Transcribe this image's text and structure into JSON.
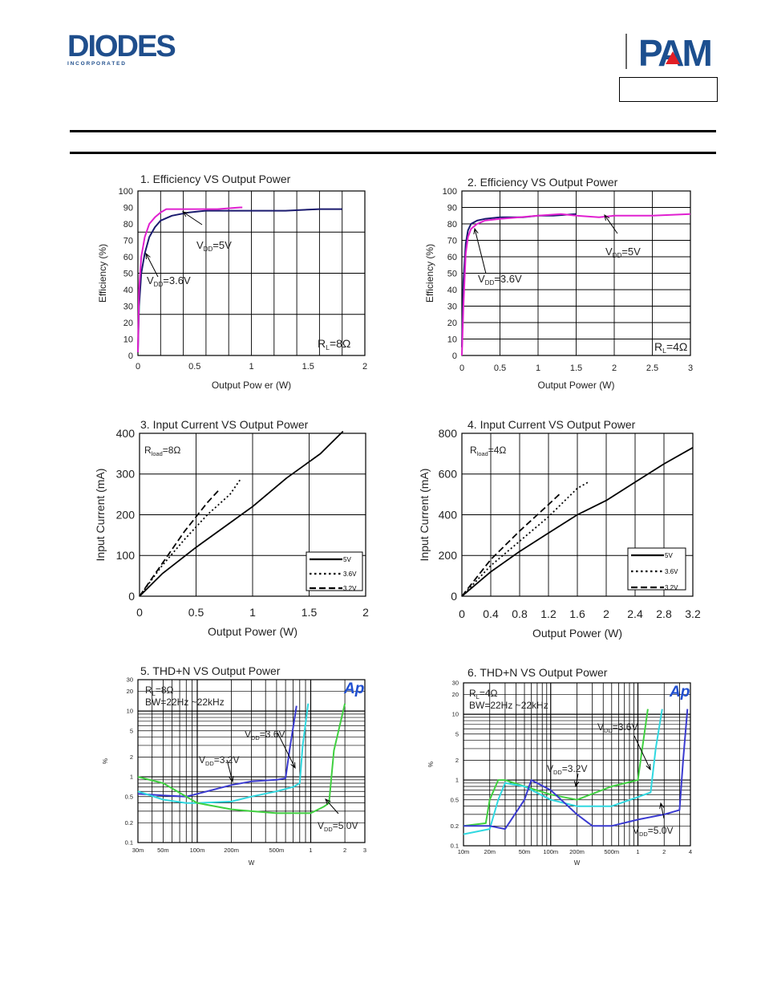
{
  "header": {
    "brand_name": "DIODES",
    "brand_sub": "I N C O R P O R A T E D",
    "pam_logo": "PAM",
    "colors": {
      "diodes_blue": "#1f4e8c",
      "pam_blue": "#1c4f8f",
      "pam_red": "#e21f26"
    }
  },
  "chart_data": [
    {
      "type": "line",
      "title": "1. Efficiency VS Output Power",
      "xlabel": "Output Pow er (W)",
      "ylabel": "Efficiency (%)",
      "xlim": [
        0,
        2
      ],
      "ylim": [
        0,
        100
      ],
      "xticks": [
        "0",
        "0.5",
        "1",
        "1.5",
        "2"
      ],
      "yticks": [
        "0",
        "10",
        "20",
        "30",
        "40",
        "50",
        "60",
        "70",
        "80",
        "90",
        "100"
      ],
      "annotations": [
        "V<sub>DD</sub>=5V",
        "V<sub>DD</sub>=3.6V",
        "R<sub>L</sub>=8Ω"
      ],
      "series": [
        {
          "name": "VDD=5V",
          "color": "#1a1a6e",
          "x": [
            0,
            0.01,
            0.03,
            0.06,
            0.1,
            0.15,
            0.2,
            0.3,
            0.45,
            0.6,
            0.8,
            1.0,
            1.3,
            1.6,
            1.8
          ],
          "y": [
            2,
            30,
            50,
            62,
            72,
            78,
            82,
            85,
            87,
            88,
            88,
            88,
            88,
            89,
            89
          ]
        },
        {
          "name": "VDD=3.6V",
          "color": "#e020d0",
          "x": [
            0,
            0.01,
            0.03,
            0.06,
            0.1,
            0.15,
            0.2,
            0.25,
            0.35,
            0.5,
            0.7,
            0.9,
            0.92
          ],
          "y": [
            2,
            40,
            60,
            72,
            80,
            84,
            87,
            89,
            89,
            89,
            89,
            90,
            90
          ]
        }
      ]
    },
    {
      "type": "line",
      "title": "2. Efficiency VS Output Power",
      "xlabel": "Output Power (W)",
      "ylabel": "Efficiency (%)",
      "xlim": [
        0,
        3
      ],
      "ylim": [
        0,
        100
      ],
      "xticks": [
        "0",
        "0.5",
        "1",
        "1.5",
        "2",
        "2.5",
        "3"
      ],
      "yticks": [
        "0",
        "10",
        "20",
        "30",
        "40",
        "50",
        "60",
        "70",
        "80",
        "90",
        "100"
      ],
      "annotations": [
        "V<sub>DD</sub>=5V",
        "V<sub>DD</sub>=3.6V",
        "R<sub>L</sub>=4Ω"
      ],
      "series": [
        {
          "name": "VDD=3.6V",
          "color": "#1a1a6e",
          "x": [
            0,
            0.02,
            0.05,
            0.08,
            0.12,
            0.2,
            0.3,
            0.5,
            0.8,
            1.0,
            1.2,
            1.5
          ],
          "y": [
            5,
            45,
            68,
            76,
            80,
            82,
            83,
            84,
            84,
            85,
            85,
            86
          ]
        },
        {
          "name": "VDD=5V",
          "color": "#e020d0",
          "x": [
            0,
            0.02,
            0.05,
            0.08,
            0.12,
            0.2,
            0.3,
            0.5,
            1.0,
            1.3,
            1.5,
            1.8,
            2.0,
            2.5,
            3.0
          ],
          "y": [
            0,
            30,
            62,
            72,
            77,
            80,
            82,
            83,
            85,
            86,
            85,
            84,
            85,
            85,
            86
          ]
        }
      ]
    },
    {
      "type": "line",
      "title": "3. Input Current VS Output Power",
      "xlabel": "Output Power (W)",
      "ylabel": "Input Current (mA)",
      "xlim": [
        0,
        2
      ],
      "ylim": [
        0,
        400
      ],
      "xticks": [
        "0",
        "0.5",
        "1",
        "1.5",
        "2"
      ],
      "yticks": [
        "0",
        "100",
        "200",
        "300",
        "400"
      ],
      "annotations": [
        "R<sub>load</sub>=8Ω"
      ],
      "series": [
        {
          "name": "5V",
          "dash": "solid",
          "x": [
            0,
            0.2,
            0.5,
            0.8,
            1.0,
            1.3,
            1.6,
            1.8
          ],
          "y": [
            0,
            55,
            120,
            180,
            220,
            290,
            350,
            405
          ]
        },
        {
          "name": "3.6V",
          "dash": "dot",
          "x": [
            0,
            0.2,
            0.4,
            0.6,
            0.8,
            0.9
          ],
          "y": [
            0,
            75,
            140,
            200,
            250,
            290
          ]
        },
        {
          "name": "3.2V",
          "dash": "dash",
          "x": [
            0,
            0.2,
            0.4,
            0.6,
            0.7
          ],
          "y": [
            0,
            80,
            160,
            230,
            260
          ]
        }
      ]
    },
    {
      "type": "line",
      "title": "4. Input Current VS Output Power",
      "xlabel": "Output Power (W)",
      "ylabel": "Input Current (mA)",
      "xlim": [
        0,
        3.2
      ],
      "ylim": [
        0,
        800
      ],
      "xticks": [
        "0",
        "0.4",
        "0.8",
        "1.2",
        "1.6",
        "2",
        "2.4",
        "2.8",
        "3.2"
      ],
      "yticks": [
        "0",
        "200",
        "400",
        "600",
        "800"
      ],
      "annotations": [
        "R<sub>load</sub>=4Ω"
      ],
      "series": [
        {
          "name": "5V",
          "dash": "solid",
          "x": [
            0,
            0.4,
            0.8,
            1.2,
            1.6,
            2.0,
            2.4,
            2.8,
            3.2
          ],
          "y": [
            0,
            120,
            220,
            310,
            400,
            470,
            560,
            650,
            730
          ]
        },
        {
          "name": "3.6V",
          "dash": "dot",
          "x": [
            0,
            0.4,
            0.8,
            1.2,
            1.6,
            1.75
          ],
          "y": [
            0,
            150,
            270,
            390,
            530,
            560
          ]
        },
        {
          "name": "3.2V",
          "dash": "dash",
          "x": [
            0,
            0.4,
            0.8,
            1.2,
            1.35
          ],
          "y": [
            0,
            180,
            320,
            450,
            500
          ]
        }
      ]
    },
    {
      "type": "line",
      "scale": "log",
      "title": "5. THD+N VS Output Power",
      "xlabel": "W",
      "ylabel": "%",
      "xlim": [
        0.03,
        3
      ],
      "ylim": [
        0.1,
        30
      ],
      "xticks": [
        "30m",
        "50m",
        "100m",
        "200m",
        "500m",
        "1",
        "2",
        "3"
      ],
      "yticks": [
        "0.1",
        "0.2",
        "0.5",
        "1",
        "2",
        "5",
        "10",
        "20",
        "30"
      ],
      "annotations": [
        "R<sub>L</sub>=8Ω",
        "BW=22Hz ~22kHz",
        "V<sub>DD</sub>=3.6V",
        "V<sub>DD</sub>=3.2V",
        "V<sub>DD</sub>=5.0V"
      ],
      "series": [
        {
          "name": "VDD=3.2V",
          "color": "#3a3ad0",
          "x": [
            0.03,
            0.05,
            0.08,
            0.1,
            0.2,
            0.3,
            0.5,
            0.6,
            0.65,
            0.75
          ],
          "y": [
            0.55,
            0.52,
            0.5,
            0.55,
            0.75,
            0.85,
            0.9,
            0.95,
            2.5,
            12
          ]
        },
        {
          "name": "VDD=3.6V",
          "color": "#30d8e0",
          "x": [
            0.03,
            0.05,
            0.08,
            0.1,
            0.2,
            0.3,
            0.5,
            0.7,
            0.8,
            0.85,
            0.95
          ],
          "y": [
            0.6,
            0.45,
            0.4,
            0.4,
            0.42,
            0.5,
            0.6,
            0.7,
            0.8,
            3,
            13
          ]
        },
        {
          "name": "VDD=5.0V",
          "color": "#40d040",
          "x": [
            0.03,
            0.05,
            0.08,
            0.1,
            0.2,
            0.3,
            0.5,
            0.8,
            1.0,
            1.3,
            1.45,
            1.6,
            2.0
          ],
          "y": [
            1.0,
            0.8,
            0.5,
            0.4,
            0.32,
            0.3,
            0.28,
            0.28,
            0.28,
            0.35,
            0.4,
            2.5,
            13
          ]
        }
      ]
    },
    {
      "type": "line",
      "scale": "log",
      "title": "6. THD+N VS Output Power",
      "xlabel": "W",
      "ylabel": "%",
      "xlim": [
        0.01,
        4
      ],
      "ylim": [
        0.1,
        30
      ],
      "xticks": [
        "10m",
        "20m",
        "50m",
        "100m",
        "200m",
        "500m",
        "1",
        "2",
        "4"
      ],
      "yticks": [
        "0.1",
        "0.2",
        "0.5",
        "1",
        "2",
        "5",
        "10",
        "20",
        "30"
      ],
      "annotations": [
        "R<sub>L</sub>=4Ω",
        "BW=22Hz ~22kHz",
        "V<sub>DD</sub>=3.6V",
        "V<sub>DD</sub>=3.2V",
        "V<sub>DD</sub>=5.0V"
      ],
      "series": [
        {
          "name": "VDD=3.2V",
          "color": "#40d040",
          "x": [
            0.01,
            0.018,
            0.02,
            0.025,
            0.03,
            0.05,
            0.1,
            0.2,
            0.5,
            1.0,
            1.1,
            1.3
          ],
          "y": [
            0.2,
            0.22,
            0.5,
            1.0,
            1.0,
            0.8,
            0.6,
            0.5,
            0.8,
            1.0,
            2.5,
            12
          ]
        },
        {
          "name": "VDD=3.6V",
          "color": "#30d8e0",
          "x": [
            0.01,
            0.02,
            0.025,
            0.03,
            0.05,
            0.1,
            0.2,
            0.5,
            1.0,
            1.4,
            1.6,
            1.9
          ],
          "y": [
            0.15,
            0.18,
            0.5,
            0.9,
            0.8,
            0.5,
            0.4,
            0.4,
            0.55,
            0.65,
            3,
            12
          ]
        },
        {
          "name": "VDD=5.0V",
          "color": "#3a3ad0",
          "x": [
            0.01,
            0.02,
            0.03,
            0.05,
            0.06,
            0.1,
            0.2,
            0.3,
            0.5,
            1.0,
            2.0,
            3.0,
            3.3,
            3.7
          ],
          "y": [
            0.2,
            0.2,
            0.18,
            0.5,
            1.0,
            0.7,
            0.3,
            0.2,
            0.2,
            0.25,
            0.3,
            0.35,
            2,
            12
          ]
        }
      ]
    }
  ]
}
